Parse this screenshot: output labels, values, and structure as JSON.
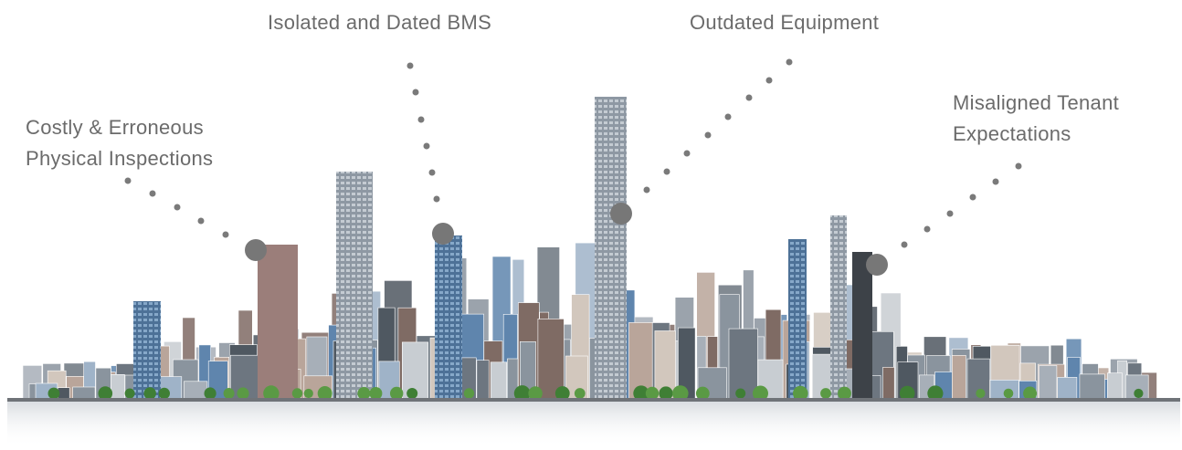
{
  "callouts": [
    {
      "lines": [
        "Costly & Erroneous",
        "Physical Inspections"
      ]
    },
    {
      "lines": [
        "Isolated and Dated BMS"
      ]
    },
    {
      "lines": [
        "Outdated Equipment"
      ]
    },
    {
      "lines": [
        "Misaligned Tenant",
        "Expectations"
      ]
    }
  ]
}
